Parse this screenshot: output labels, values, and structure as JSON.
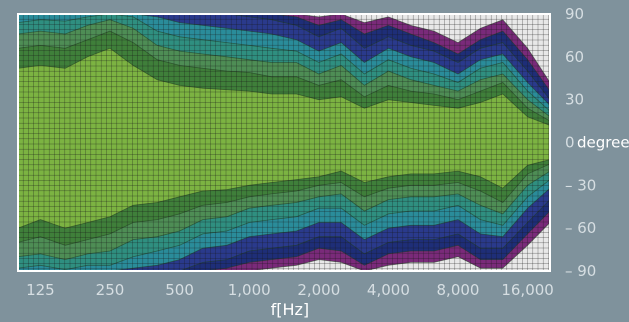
{
  "chart_data": {
    "type": "heatmap",
    "title": "",
    "xlabel": "f[Hz]",
    "ylabel": "",
    "x_scale": "log",
    "x_ticks": [
      125,
      250,
      500,
      1000,
      2000,
      4000,
      8000,
      16000
    ],
    "x_tick_labels": [
      "125",
      "250",
      "500",
      "1,000",
      "2,000",
      "4,000",
      "8,000",
      "16,000"
    ],
    "xlim": [
      100,
      20000
    ],
    "y_ticks": [
      90,
      60,
      30,
      0,
      -30,
      -60,
      -90
    ],
    "y_tick_labels": [
      "90",
      "60",
      "30",
      "0",
      "– 30",
      "– 60",
      "– 90"
    ],
    "ylim": [
      -90,
      90
    ],
    "y_unit": "degree",
    "grid": true,
    "band_colors": [
      "#7cb342",
      "#3f7f3a",
      "#4e8d55",
      "#2f8f80",
      "#2a8c9a",
      "#2a3a8c",
      "#1e2e78",
      "#7a2a7a",
      "#e8e8e8"
    ],
    "band_edges_upper": {
      "x": [
        100,
        125,
        160,
        200,
        250,
        315,
        400,
        500,
        630,
        800,
        1000,
        1250,
        1600,
        2000,
        2500,
        3150,
        4000,
        5000,
        6300,
        8000,
        10000,
        12500,
        16000,
        20000
      ],
      "edges": [
        [
          52,
          54,
          52,
          60,
          66,
          54,
          44,
          40,
          38,
          37,
          36,
          34,
          34,
          30,
          32,
          24,
          30,
          28,
          26,
          24,
          28,
          34,
          18,
          12
        ],
        [
          66,
          68,
          66,
          72,
          78,
          70,
          58,
          54,
          52,
          50,
          49,
          46,
          46,
          40,
          44,
          32,
          40,
          36,
          34,
          30,
          36,
          42,
          24,
          15
        ],
        [
          76,
          78,
          76,
          82,
          86,
          80,
          68,
          64,
          62,
          60,
          58,
          56,
          56,
          48,
          54,
          40,
          50,
          44,
          40,
          36,
          44,
          48,
          30,
          18
        ],
        [
          84,
          86,
          85,
          88,
          90,
          88,
          78,
          74,
          72,
          70,
          68,
          66,
          64,
          56,
          62,
          48,
          58,
          52,
          48,
          42,
          52,
          56,
          36,
          22
        ],
        [
          90,
          90,
          90,
          90,
          90,
          90,
          88,
          84,
          82,
          80,
          78,
          76,
          72,
          64,
          70,
          56,
          66,
          60,
          56,
          48,
          58,
          62,
          42,
          26
        ],
        [
          90,
          90,
          90,
          90,
          90,
          90,
          90,
          90,
          90,
          90,
          88,
          86,
          82,
          74,
          80,
          66,
          74,
          68,
          64,
          56,
          66,
          70,
          50,
          30
        ],
        [
          90,
          90,
          90,
          90,
          90,
          90,
          90,
          90,
          90,
          90,
          90,
          90,
          88,
          82,
          86,
          76,
          82,
          76,
          70,
          62,
          72,
          78,
          58,
          36
        ],
        [
          90,
          90,
          90,
          90,
          90,
          90,
          90,
          90,
          90,
          90,
          90,
          90,
          90,
          88,
          90,
          84,
          88,
          82,
          78,
          70,
          80,
          86,
          66,
          42
        ]
      ]
    },
    "band_edges_lower": {
      "x": [
        100,
        125,
        160,
        200,
        250,
        315,
        400,
        500,
        630,
        800,
        1000,
        1250,
        1600,
        2000,
        2500,
        3150,
        4000,
        5000,
        6300,
        8000,
        10000,
        12500,
        16000,
        20000
      ],
      "edges": [
        [
          -60,
          -54,
          -60,
          -56,
          -52,
          -44,
          -42,
          -38,
          -34,
          -33,
          -30,
          -28,
          -26,
          -24,
          -20,
          -28,
          -24,
          -22,
          -22,
          -20,
          -24,
          -32,
          -16,
          -12
        ],
        [
          -70,
          -66,
          -72,
          -68,
          -64,
          -56,
          -54,
          -50,
          -44,
          -42,
          -38,
          -36,
          -34,
          -30,
          -28,
          -38,
          -32,
          -30,
          -30,
          -28,
          -34,
          -42,
          -22,
          -15
        ],
        [
          -80,
          -78,
          -82,
          -78,
          -76,
          -68,
          -66,
          -62,
          -54,
          -52,
          -46,
          -44,
          -42,
          -38,
          -36,
          -48,
          -40,
          -38,
          -38,
          -36,
          -44,
          -50,
          -30,
          -20
        ],
        [
          -88,
          -86,
          -89,
          -86,
          -86,
          -80,
          -76,
          -72,
          -64,
          -62,
          -56,
          -54,
          -52,
          -46,
          -46,
          -58,
          -50,
          -48,
          -48,
          -44,
          -54,
          -58,
          -38,
          -26
        ],
        [
          -90,
          -90,
          -90,
          -90,
          -90,
          -88,
          -86,
          -82,
          -74,
          -72,
          -66,
          -64,
          -62,
          -56,
          -56,
          -68,
          -60,
          -58,
          -58,
          -54,
          -64,
          -66,
          -46,
          -32
        ],
        [
          -90,
          -90,
          -90,
          -90,
          -90,
          -90,
          -90,
          -90,
          -84,
          -82,
          -76,
          -74,
          -72,
          -66,
          -66,
          -78,
          -70,
          -68,
          -68,
          -64,
          -74,
          -74,
          -56,
          -40
        ],
        [
          -90,
          -90,
          -90,
          -90,
          -90,
          -90,
          -90,
          -90,
          -90,
          -88,
          -84,
          -82,
          -80,
          -74,
          -76,
          -86,
          -78,
          -76,
          -76,
          -72,
          -82,
          -82,
          -64,
          -48
        ],
        [
          -90,
          -90,
          -90,
          -90,
          -90,
          -90,
          -90,
          -90,
          -90,
          -90,
          -90,
          -88,
          -86,
          -82,
          -84,
          -90,
          -86,
          -84,
          -84,
          -80,
          -88,
          -88,
          -72,
          -56
        ]
      ]
    }
  }
}
